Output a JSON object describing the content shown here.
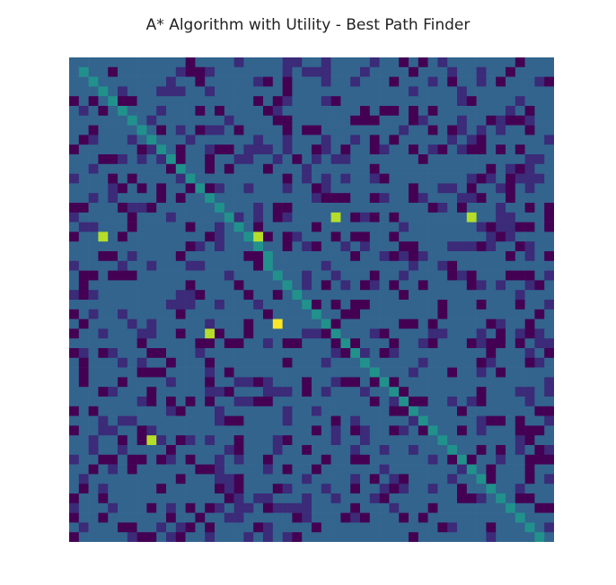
{
  "chart_data": {
    "type": "heatmap",
    "title": "A* Algorithm with Utility - Best Path Finder",
    "rows": 50,
    "cols": 50,
    "grid": false,
    "axes_visible": false,
    "colormap": "viridis",
    "value_range": [
      0,
      1
    ],
    "palette": {
      "0": "#440154",
      "1": "#3b2b78",
      "2": "#32648e",
      "3": "#21918c",
      "4": "#b5de2b",
      "5": "#fde725"
    },
    "value_of_level": {
      "0": 0.0,
      "1": 0.1,
      "2": 0.33,
      "3": 0.5,
      "4": 0.82,
      "5": 1.0
    },
    "path": {
      "level": 3,
      "cells": [
        [
          1,
          1
        ],
        [
          2,
          2
        ],
        [
          3,
          3
        ],
        [
          4,
          4
        ],
        [
          5,
          5
        ],
        [
          6,
          6
        ],
        [
          7,
          7
        ],
        [
          8,
          8
        ],
        [
          9,
          9
        ],
        [
          10,
          10
        ],
        [
          11,
          11
        ],
        [
          12,
          12
        ],
        [
          13,
          13
        ],
        [
          14,
          14
        ],
        [
          15,
          15
        ],
        [
          16,
          16
        ],
        [
          17,
          17
        ],
        [
          18,
          18
        ],
        [
          19,
          19
        ],
        [
          20,
          20
        ],
        [
          21,
          20
        ],
        [
          22,
          21
        ],
        [
          23,
          22
        ],
        [
          24,
          23
        ],
        [
          25,
          24
        ],
        [
          26,
          25
        ],
        [
          27,
          26
        ],
        [
          28,
          27
        ],
        [
          29,
          28
        ],
        [
          30,
          29
        ],
        [
          31,
          30
        ],
        [
          32,
          31
        ],
        [
          33,
          32
        ],
        [
          34,
          33
        ],
        [
          35,
          34
        ],
        [
          36,
          35
        ],
        [
          37,
          36
        ],
        [
          38,
          37
        ],
        [
          39,
          38
        ],
        [
          40,
          39
        ],
        [
          41,
          40
        ],
        [
          42,
          41
        ],
        [
          43,
          42
        ],
        [
          44,
          43
        ],
        [
          45,
          44
        ],
        [
          46,
          45
        ],
        [
          47,
          46
        ],
        [
          48,
          47
        ],
        [
          49,
          48
        ]
      ]
    },
    "utility_cells": [
      {
        "row": 16,
        "col": 27,
        "level": 4
      },
      {
        "row": 16,
        "col": 41,
        "level": 4
      },
      {
        "row": 18,
        "col": 3,
        "level": 4
      },
      {
        "row": 18,
        "col": 19,
        "level": 4
      },
      {
        "row": 27,
        "col": 21,
        "level": 5
      },
      {
        "row": 28,
        "col": 14,
        "level": 4
      },
      {
        "row": 39,
        "col": 8,
        "level": 4
      }
    ],
    "background": {
      "level": 2,
      "obstacle_levels": [
        0,
        1
      ],
      "obstacle_density": 0.3,
      "pattern_seed": 20240607
    }
  }
}
